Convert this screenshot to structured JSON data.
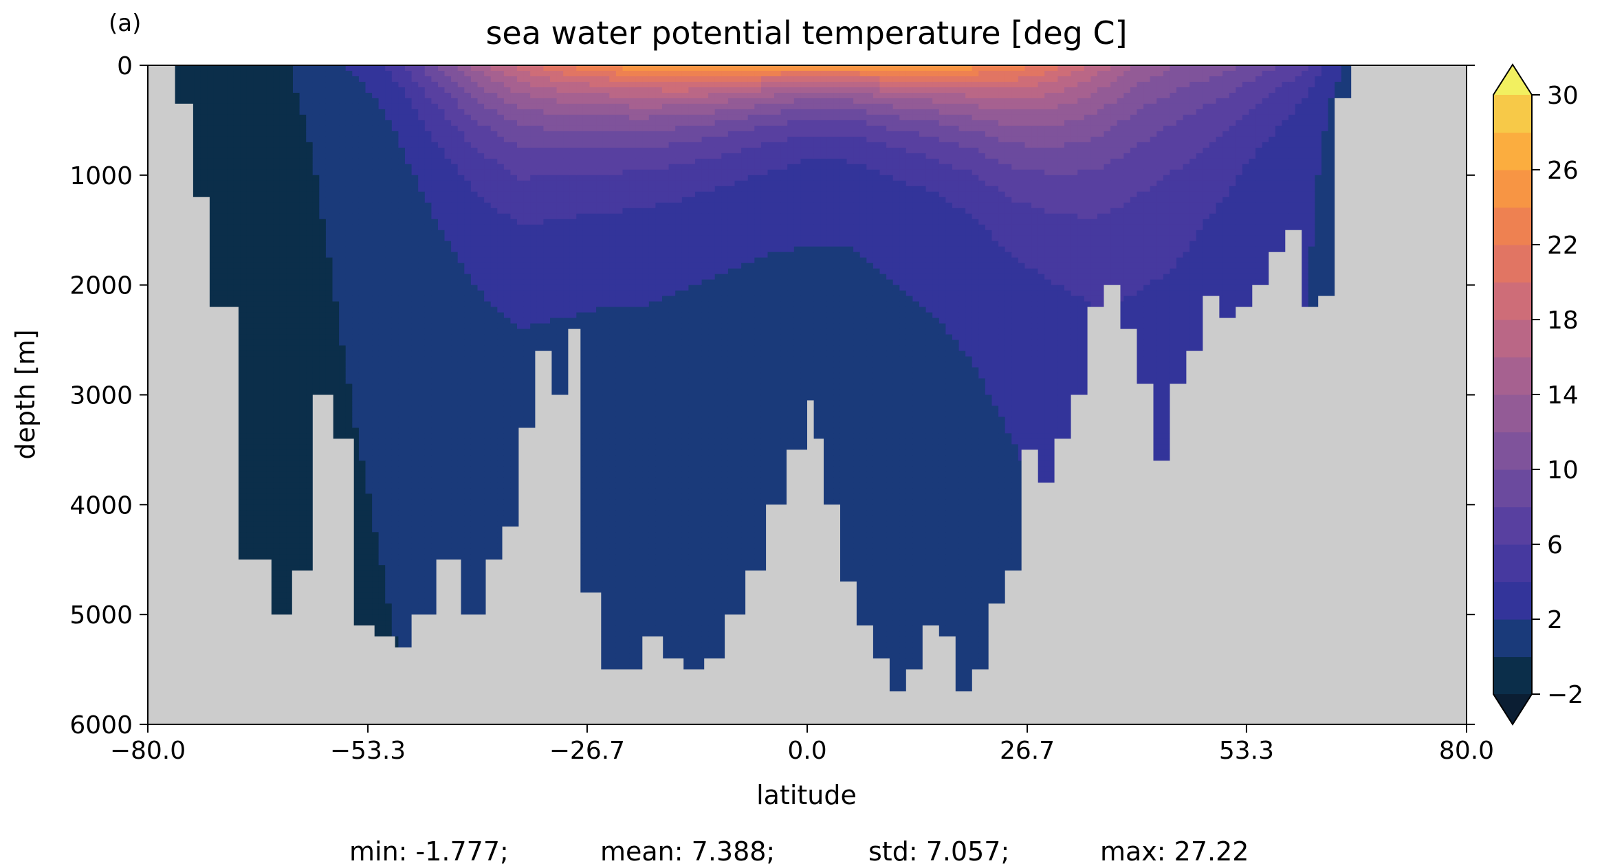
{
  "panel_label": "(a)",
  "chart_data": {
    "type": "heatmap",
    "title": "sea water potential temperature [deg C]",
    "xlabel": "latitude",
    "ylabel": "depth [m]",
    "xlim": [
      -80.0,
      80.0
    ],
    "ylim": [
      6000,
      0
    ],
    "y_inverted": true,
    "grid": false,
    "missing_color": "#cccccc",
    "xticks": [
      -80.0,
      -53.3,
      -26.7,
      0.0,
      26.7,
      53.3,
      80.0
    ],
    "xtick_labels": [
      "−80.0",
      "−53.3",
      "−26.7",
      "0.0",
      "26.7",
      "53.3",
      "80.0"
    ],
    "yticks": [
      0,
      1000,
      2000,
      3000,
      4000,
      5000,
      6000
    ],
    "ytick_labels": [
      "0",
      "1000",
      "2000",
      "3000",
      "4000",
      "5000",
      "6000"
    ],
    "colorbar": {
      "levels": [
        -2,
        0,
        2,
        4,
        6,
        8,
        10,
        12,
        14,
        16,
        18,
        20,
        22,
        24,
        26,
        28,
        30
      ],
      "extend": "both",
      "ticks": [
        -2,
        2,
        6,
        10,
        14,
        18,
        22,
        26,
        30
      ],
      "tick_labels": [
        "−2",
        "2",
        "6",
        "10",
        "14",
        "18",
        "22",
        "26",
        "30"
      ],
      "colors": [
        "#0b2e4a",
        "#1a3a7a",
        "#33349a",
        "#46399f",
        "#5840a0",
        "#6b4a9e",
        "#7f539b",
        "#935b96",
        "#a66190",
        "#ba6786",
        "#ce6d78",
        "#e17563",
        "#ee8151",
        "#f79544",
        "#fbad3f",
        "#f7c948",
        "#f2e258"
      ],
      "under_color": "#0b1e33",
      "over_color": "#f2f060"
    },
    "seafloor_profile": {
      "latitude": [
        -80,
        -76.7,
        -74.5,
        -72.5,
        -69,
        -65,
        -62.5,
        -60,
        -57.5,
        -55,
        -52.5,
        -50,
        -48,
        -45,
        -42,
        -39,
        -37,
        -35,
        -33,
        -31,
        -29,
        -27.5,
        -25,
        -23,
        -20,
        -17.5,
        -15,
        -12.5,
        -10,
        -7.5,
        -5,
        -2.5,
        0,
        0.8,
        2,
        4,
        6,
        8,
        10,
        12,
        14,
        16,
        18,
        20,
        22,
        24,
        26,
        28,
        30,
        32,
        34,
        36,
        38,
        40,
        42,
        44,
        46,
        48,
        50,
        52,
        54,
        56,
        58,
        60,
        62,
        64,
        66,
        68,
        70,
        80
      ],
      "depth": [
        0,
        350,
        1200,
        2200,
        4500,
        5000,
        4600,
        3000,
        3400,
        5100,
        5200,
        5300,
        5000,
        4500,
        5000,
        4500,
        4200,
        3300,
        2600,
        3000,
        2400,
        4800,
        5500,
        5500,
        5200,
        5400,
        5500,
        5400,
        5000,
        4600,
        4000,
        3500,
        3050,
        3400,
        4000,
        4700,
        5100,
        5400,
        5700,
        5500,
        5100,
        5200,
        5700,
        5500,
        4900,
        4600,
        3500,
        3800,
        3400,
        3000,
        2200,
        2000,
        2400,
        2900,
        3600,
        2900,
        2600,
        2100,
        2300,
        2200,
        2000,
        1700,
        1500,
        2200,
        2100,
        300,
        0,
        0,
        0,
        0
      ]
    },
    "thermocline": {
      "latitude": [
        -80,
        -70,
        -60,
        -55,
        -50,
        -45,
        -40,
        -35,
        -30,
        -25,
        -20,
        -15,
        -10,
        -5,
        0,
        5,
        10,
        15,
        20,
        25,
        30,
        35,
        40,
        45,
        50,
        55,
        60,
        65,
        70,
        80
      ],
      "surface_temperature": [
        -1.8,
        -1.5,
        0.5,
        2.5,
        5.0,
        10.0,
        15.0,
        19.0,
        22.0,
        24.0,
        26.0,
        27.2,
        27.0,
        26.5,
        26.0,
        26.5,
        27.0,
        26.5,
        25.0,
        23.5,
        21.0,
        17.5,
        14.0,
        12.0,
        11.0,
        9.0,
        7.0,
        2.0,
        -1.0,
        -1.5
      ],
      "warm_layer_depth_m": [
        50,
        50,
        120,
        200,
        420,
        600,
        700,
        750,
        650,
        600,
        550,
        500,
        450,
        400,
        350,
        350,
        400,
        450,
        550,
        700,
        800,
        900,
        900,
        850,
        700,
        500,
        300,
        120,
        50,
        50
      ],
      "deep_temperature": [
        -1.5,
        -0.5,
        0.2,
        0.8,
        1.3,
        1.6,
        1.8,
        1.9,
        2.0,
        2.0,
        2.1,
        2.1,
        2.1,
        2.1,
        2.2,
        2.2,
        2.3,
        2.4,
        2.5,
        2.7,
        3.0,
        3.3,
        3.5,
        3.4,
        3.0,
        2.8,
        2.7,
        1.5,
        -0.5,
        -0.5
      ]
    }
  },
  "stats": {
    "min": "min: -1.777;",
    "mean": "mean: 7.388;",
    "std": "std: 7.057;",
    "max": "max: 27.22"
  }
}
